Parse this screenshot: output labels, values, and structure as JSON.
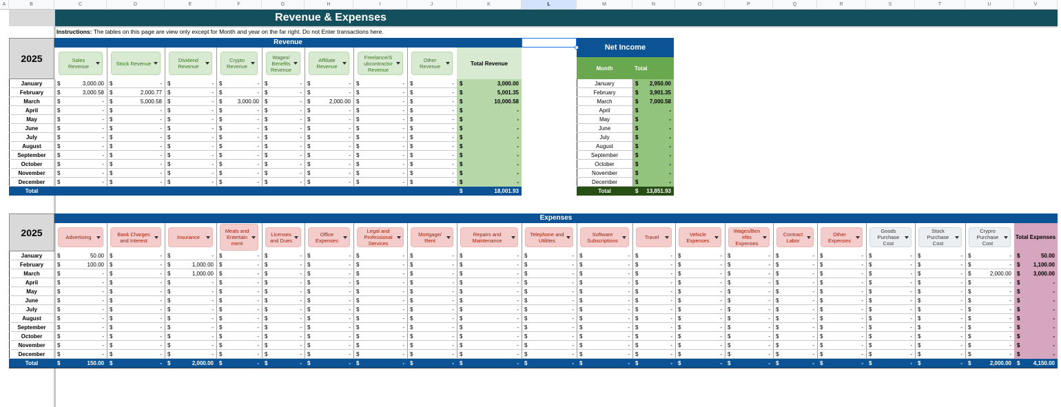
{
  "column_headers": [
    "A",
    "B",
    "C",
    "D",
    "E",
    "F",
    "G",
    "H",
    "I",
    "J",
    "K",
    "L",
    "M",
    "N",
    "O",
    "P",
    "Q",
    "R",
    "S",
    "T",
    "U",
    "V"
  ],
  "title": "Revenue & Expenses",
  "instructions_label": "Instructions:",
  "instructions_text": "The tables on this page are view only except for Month and year on the far right. Do not Enter transactions here.",
  "months": [
    "January",
    "February",
    "March",
    "April",
    "May",
    "June",
    "July",
    "August",
    "September",
    "October",
    "November",
    "December"
  ],
  "total_label": "Total",
  "dollar": "$",
  "dash": "-",
  "revenue": {
    "year": "2025",
    "heading": "Revenue",
    "columns": [
      "Sales Revenue",
      "Stock Revenue",
      "Dividend Revenue",
      "Crypto Revenue",
      "Wages/ Benefits Revenue",
      "Affiliate Revenue",
      "Freelance/S ubcontractor Revenue",
      "Other Revenue"
    ],
    "total_column": "Total Revenue",
    "rows": [
      [
        "3,000.00",
        "-",
        "-",
        "-",
        "-",
        "-",
        "-",
        "-",
        "3,000.00"
      ],
      [
        "3,000.58",
        "2,000.77",
        "-",
        "-",
        "-",
        "-",
        "-",
        "-",
        "5,001.35"
      ],
      [
        "-",
        "5,000.58",
        "-",
        "3,000.00",
        "-",
        "2,000.00",
        "-",
        "-",
        "10,000.58"
      ],
      [
        "-",
        "-",
        "-",
        "-",
        "-",
        "-",
        "-",
        "-",
        "-"
      ],
      [
        "-",
        "-",
        "-",
        "-",
        "-",
        "-",
        "-",
        "-",
        "-"
      ],
      [
        "-",
        "-",
        "-",
        "-",
        "-",
        "-",
        "-",
        "-",
        "-"
      ],
      [
        "-",
        "-",
        "-",
        "-",
        "-",
        "-",
        "-",
        "-",
        "-"
      ],
      [
        "-",
        "-",
        "-",
        "-",
        "-",
        "-",
        "-",
        "-",
        "-"
      ],
      [
        "-",
        "-",
        "-",
        "-",
        "-",
        "-",
        "-",
        "-",
        "-"
      ],
      [
        "-",
        "-",
        "-",
        "-",
        "-",
        "-",
        "-",
        "-",
        "-"
      ],
      [
        "-",
        "-",
        "-",
        "-",
        "-",
        "-",
        "-",
        "-",
        "-"
      ],
      [
        "-",
        "-",
        "-",
        "-",
        "-",
        "-",
        "-",
        "-",
        "-"
      ]
    ],
    "grand_total": "18,001.93"
  },
  "net_income": {
    "heading": "Net Income",
    "month_col": "Month",
    "total_col": "Total",
    "rows": [
      "2,950.00",
      "3,901.35",
      "7,000.58",
      "-",
      "-",
      "-",
      "-",
      "-",
      "-",
      "-",
      "-",
      "-"
    ],
    "grand_total": "13,851.93"
  },
  "expenses": {
    "year": "2025",
    "heading": "Expenses",
    "columns": [
      "Advertising",
      "Bank Charges and Interest",
      "Insurance",
      "Meals and Entertain ment",
      "Licenses and Dues",
      "Office Expenses",
      "Legal and Professional Services",
      "Mortgage/ Rent",
      "Repairs and Maintenance",
      "Telephone and Utilities",
      "Software Subscriptions",
      "Travel",
      "Vehicle Expenses",
      "Wages/Ben efits Expenses",
      "Contract Labor",
      "Other Expenses",
      "Goods Purchase Cost",
      "Stock Purchase Cost",
      "Crypro Purchase Cost"
    ],
    "total_column": "Total Expenses",
    "rows": [
      [
        "50.00",
        "-",
        "-",
        "-",
        "-",
        "-",
        "-",
        "-",
        "-",
        "-",
        "-",
        "-",
        "-",
        "-",
        "-",
        "-",
        "-",
        "-",
        "-",
        "50.00"
      ],
      [
        "100.00",
        "-",
        "1,000.00",
        "-",
        "-",
        "-",
        "-",
        "-",
        "-",
        "-",
        "-",
        "-",
        "-",
        "-",
        "-",
        "-",
        "-",
        "-",
        "-",
        "1,100.00"
      ],
      [
        "-",
        "-",
        "1,000.00",
        "-",
        "-",
        "-",
        "-",
        "-",
        "-",
        "-",
        "-",
        "-",
        "-",
        "-",
        "-",
        "-",
        "-",
        "-",
        "2,000.00",
        "3,000.00"
      ],
      [
        "-",
        "-",
        "-",
        "-",
        "-",
        "-",
        "-",
        "-",
        "-",
        "-",
        "-",
        "-",
        "-",
        "-",
        "-",
        "-",
        "-",
        "-",
        "-",
        "-"
      ],
      [
        "-",
        "-",
        "-",
        "-",
        "-",
        "-",
        "-",
        "-",
        "-",
        "-",
        "-",
        "-",
        "-",
        "-",
        "-",
        "-",
        "-",
        "-",
        "-",
        "-"
      ],
      [
        "-",
        "-",
        "-",
        "-",
        "-",
        "-",
        "-",
        "-",
        "-",
        "-",
        "-",
        "-",
        "-",
        "-",
        "-",
        "-",
        "-",
        "-",
        "-",
        "-"
      ],
      [
        "-",
        "-",
        "-",
        "-",
        "-",
        "-",
        "-",
        "-",
        "-",
        "-",
        "-",
        "-",
        "-",
        "-",
        "-",
        "-",
        "-",
        "-",
        "-",
        "-"
      ],
      [
        "-",
        "-",
        "-",
        "-",
        "-",
        "-",
        "-",
        "-",
        "-",
        "-",
        "-",
        "-",
        "-",
        "-",
        "-",
        "-",
        "-",
        "-",
        "-",
        "-"
      ],
      [
        "-",
        "-",
        "-",
        "-",
        "-",
        "-",
        "-",
        "-",
        "-",
        "-",
        "-",
        "-",
        "-",
        "-",
        "-",
        "-",
        "-",
        "-",
        "-",
        "-"
      ],
      [
        "-",
        "-",
        "-",
        "-",
        "-",
        "-",
        "-",
        "-",
        "-",
        "-",
        "-",
        "-",
        "-",
        "-",
        "-",
        "-",
        "-",
        "-",
        "-",
        "-"
      ],
      [
        "-",
        "-",
        "-",
        "-",
        "-",
        "-",
        "-",
        "-",
        "-",
        "-",
        "-",
        "-",
        "-",
        "-",
        "-",
        "-",
        "-",
        "-",
        "-",
        "-"
      ],
      [
        "-",
        "-",
        "-",
        "-",
        "-",
        "-",
        "-",
        "-",
        "-",
        "-",
        "-",
        "-",
        "-",
        "-",
        "-",
        "-",
        "-",
        "-",
        "-",
        "-"
      ]
    ],
    "totals": [
      "150.00",
      "-",
      "2,000.00",
      "-",
      "-",
      "-",
      "-",
      "-",
      "-",
      "-",
      "-",
      "-",
      "-",
      "-",
      "-",
      "-",
      "-",
      "-",
      "2,000.00",
      "4,150.00"
    ]
  },
  "colors": {
    "title_bar": "#134f5c",
    "header_blue": "#0b5394",
    "green_total": "#b6d7a8",
    "green_chip": "#d9ead3",
    "red_chip": "#f4cccc",
    "pink_total": "#d5a6bd",
    "net_green": "#6aa84f",
    "net_dark": "#274e13"
  }
}
